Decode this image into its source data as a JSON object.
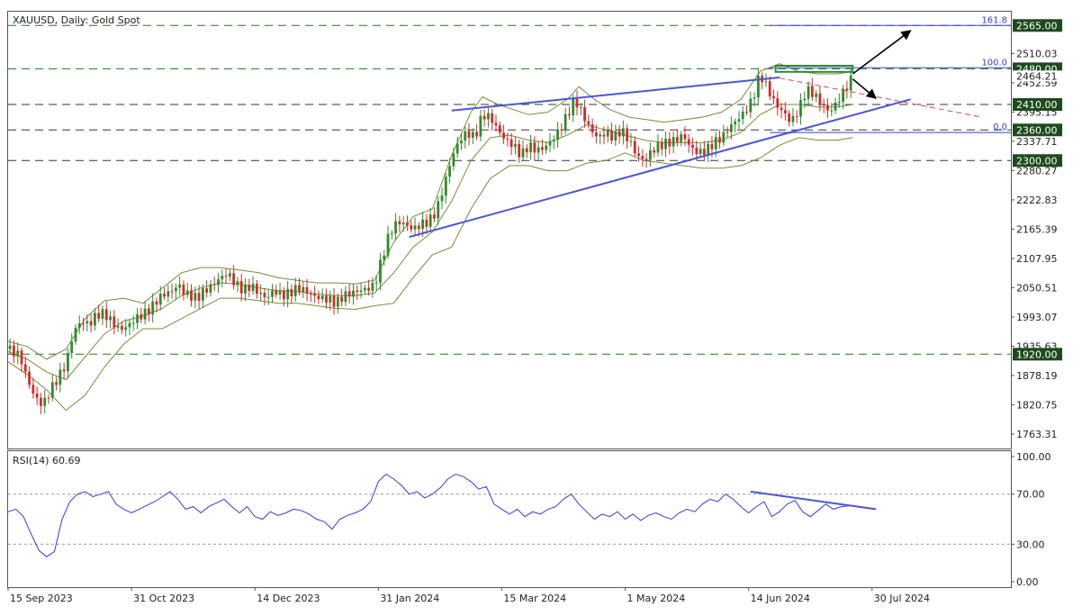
{
  "chart_data": {
    "type": "candlestick",
    "title": "XAUUSD, Daily:  Gold Spot",
    "price_ylim": [
      1735,
      2592
    ],
    "price_ticks": [
      "2510.03",
      "2452.59",
      "2395.15",
      "2337.71",
      "2280.27",
      "2222.83",
      "2165.39",
      "2107.95",
      "2050.51",
      "1993.07",
      "1935.63",
      "1878.19",
      "1820.75",
      "1763.31"
    ],
    "levels": [
      {
        "value": 2565.0,
        "label": "2565.00",
        "style": "dashed",
        "color": "#1a7a1a"
      },
      {
        "value": 2480.0,
        "label": "2480.00",
        "style": "dashed",
        "color": "#1a7a1a"
      },
      {
        "value": 2410.0,
        "label": "2410.00",
        "style": "dashed",
        "color": "#333333"
      },
      {
        "value": 2360.0,
        "label": "2360.00",
        "style": "dashed",
        "color": "#333333"
      },
      {
        "value": 2300.0,
        "label": "2300.00",
        "style": "dashed",
        "color": "#333333"
      },
      {
        "value": 1920.0,
        "label": "1920.00",
        "style": "dashed",
        "color": "#1a7a1a"
      }
    ],
    "current_price_label": "2464.21",
    "fibonacci": [
      {
        "label": "161.8",
        "value": 2565.0
      },
      {
        "label": "100.0",
        "value": 2482.0
      },
      {
        "label": "0.0",
        "value": 2355.0
      }
    ],
    "x_labels": [
      "15 Sep 2023",
      "31 Oct 2023",
      "14 Dec 2023",
      "31 Jan 2024",
      "15 Mar 2024",
      "1 May 2024",
      "14 Jun 2024",
      "30 Jul 2024"
    ],
    "price_path": [
      [
        0,
        1930
      ],
      [
        6,
        1918
      ],
      [
        10,
        1870
      ],
      [
        14,
        1835
      ],
      [
        18,
        1820
      ],
      [
        22,
        1850
      ],
      [
        26,
        1875
      ],
      [
        30,
        1900
      ],
      [
        34,
        1965
      ],
      [
        38,
        1985
      ],
      [
        42,
        1978
      ],
      [
        46,
        1998
      ],
      [
        50,
        2000
      ],
      [
        54,
        1982
      ],
      [
        58,
        1968
      ],
      [
        62,
        1975
      ],
      [
        66,
        1990
      ],
      [
        70,
        1998
      ],
      [
        74,
        2010
      ],
      [
        78,
        2030
      ],
      [
        82,
        2040
      ],
      [
        86,
        2045
      ],
      [
        88,
        2060
      ],
      [
        90,
        2045
      ],
      [
        94,
        2035
      ],
      [
        98,
        2030
      ],
      [
        102,
        2045
      ],
      [
        106,
        2055
      ],
      [
        110,
        2070
      ],
      [
        114,
        2078
      ],
      [
        118,
        2058
      ],
      [
        122,
        2045
      ],
      [
        126,
        2055
      ],
      [
        130,
        2040
      ],
      [
        134,
        2030
      ],
      [
        138,
        2045
      ],
      [
        142,
        2035
      ],
      [
        146,
        2040
      ],
      [
        150,
        2050
      ],
      [
        154,
        2045
      ],
      [
        158,
        2035
      ],
      [
        162,
        2030
      ],
      [
        166,
        2028
      ],
      [
        170,
        2020
      ],
      [
        174,
        2035
      ],
      [
        178,
        2040
      ],
      [
        182,
        2045
      ],
      [
        186,
        2048
      ],
      [
        190,
        2055
      ],
      [
        194,
        2110
      ],
      [
        198,
        2160
      ],
      [
        202,
        2180
      ],
      [
        206,
        2175
      ],
      [
        210,
        2165
      ],
      [
        214,
        2175
      ],
      [
        218,
        2180
      ],
      [
        222,
        2200
      ],
      [
        226,
        2250
      ],
      [
        230,
        2305
      ],
      [
        234,
        2340
      ],
      [
        238,
        2355
      ],
      [
        242,
        2345
      ],
      [
        246,
        2390
      ],
      [
        250,
        2385
      ],
      [
        254,
        2360
      ],
      [
        258,
        2340
      ],
      [
        262,
        2330
      ],
      [
        266,
        2310
      ],
      [
        270,
        2330
      ],
      [
        274,
        2320
      ],
      [
        278,
        2325
      ],
      [
        282,
        2340
      ],
      [
        286,
        2360
      ],
      [
        290,
        2390
      ],
      [
        294,
        2420
      ],
      [
        298,
        2390
      ],
      [
        302,
        2360
      ],
      [
        306,
        2345
      ],
      [
        310,
        2355
      ],
      [
        314,
        2345
      ],
      [
        318,
        2360
      ],
      [
        322,
        2340
      ],
      [
        326,
        2310
      ],
      [
        330,
        2300
      ],
      [
        334,
        2320
      ],
      [
        338,
        2330
      ],
      [
        342,
        2335
      ],
      [
        346,
        2340
      ],
      [
        350,
        2350
      ],
      [
        354,
        2325
      ],
      [
        358,
        2315
      ],
      [
        362,
        2320
      ],
      [
        366,
        2335
      ],
      [
        370,
        2345
      ],
      [
        374,
        2365
      ],
      [
        378,
        2380
      ],
      [
        382,
        2395
      ],
      [
        386,
        2420
      ],
      [
        390,
        2470
      ],
      [
        394,
        2440
      ],
      [
        398,
        2410
      ],
      [
        402,
        2395
      ],
      [
        406,
        2375
      ],
      [
        410,
        2400
      ],
      [
        414,
        2440
      ],
      [
        418,
        2430
      ],
      [
        422,
        2410
      ],
      [
        426,
        2395
      ],
      [
        430,
        2415
      ],
      [
        434,
        2440
      ],
      [
        438,
        2464
      ]
    ],
    "bb_upper": [
      [
        0,
        1945
      ],
      [
        10,
        1935
      ],
      [
        20,
        1910
      ],
      [
        30,
        1930
      ],
      [
        40,
        1990
      ],
      [
        50,
        2025
      ],
      [
        60,
        2030
      ],
      [
        70,
        2020
      ],
      [
        80,
        2050
      ],
      [
        90,
        2080
      ],
      [
        100,
        2090
      ],
      [
        110,
        2090
      ],
      [
        120,
        2085
      ],
      [
        130,
        2080
      ],
      [
        140,
        2070
      ],
      [
        150,
        2065
      ],
      [
        160,
        2060
      ],
      [
        170,
        2060
      ],
      [
        180,
        2058
      ],
      [
        190,
        2065
      ],
      [
        200,
        2140
      ],
      [
        210,
        2190
      ],
      [
        220,
        2205
      ],
      [
        230,
        2310
      ],
      [
        240,
        2395
      ],
      [
        246,
        2425
      ],
      [
        254,
        2410
      ],
      [
        262,
        2400
      ],
      [
        270,
        2390
      ],
      [
        280,
        2395
      ],
      [
        290,
        2420
      ],
      [
        296,
        2445
      ],
      [
        304,
        2420
      ],
      [
        312,
        2400
      ],
      [
        322,
        2385
      ],
      [
        332,
        2380
      ],
      [
        340,
        2375
      ],
      [
        350,
        2380
      ],
      [
        360,
        2385
      ],
      [
        370,
        2395
      ],
      [
        380,
        2420
      ],
      [
        390,
        2475
      ],
      [
        400,
        2490
      ],
      [
        410,
        2475
      ],
      [
        420,
        2470
      ],
      [
        430,
        2470
      ],
      [
        438,
        2475
      ]
    ],
    "bb_middle": [
      [
        0,
        1925
      ],
      [
        10,
        1910
      ],
      [
        20,
        1885
      ],
      [
        30,
        1870
      ],
      [
        40,
        1915
      ],
      [
        50,
        1960
      ],
      [
        60,
        1985
      ],
      [
        70,
        1995
      ],
      [
        80,
        2010
      ],
      [
        90,
        2035
      ],
      [
        100,
        2050
      ],
      [
        110,
        2060
      ],
      [
        120,
        2058
      ],
      [
        130,
        2050
      ],
      [
        140,
        2045
      ],
      [
        150,
        2043
      ],
      [
        160,
        2038
      ],
      [
        170,
        2035
      ],
      [
        180,
        2035
      ],
      [
        190,
        2040
      ],
      [
        200,
        2080
      ],
      [
        210,
        2130
      ],
      [
        220,
        2160
      ],
      [
        230,
        2220
      ],
      [
        240,
        2300
      ],
      [
        250,
        2345
      ],
      [
        260,
        2350
      ],
      [
        270,
        2340
      ],
      [
        280,
        2335
      ],
      [
        290,
        2350
      ],
      [
        300,
        2370
      ],
      [
        310,
        2360
      ],
      [
        320,
        2350
      ],
      [
        330,
        2340
      ],
      [
        340,
        2335
      ],
      [
        350,
        2335
      ],
      [
        360,
        2335
      ],
      [
        370,
        2340
      ],
      [
        380,
        2355
      ],
      [
        390,
        2390
      ],
      [
        400,
        2410
      ],
      [
        410,
        2410
      ],
      [
        420,
        2405
      ],
      [
        430,
        2405
      ],
      [
        438,
        2410
      ]
    ],
    "bb_lower": [
      [
        0,
        1905
      ],
      [
        10,
        1880
      ],
      [
        20,
        1850
      ],
      [
        30,
        1810
      ],
      [
        40,
        1840
      ],
      [
        50,
        1895
      ],
      [
        60,
        1940
      ],
      [
        70,
        1970
      ],
      [
        80,
        1970
      ],
      [
        90,
        1990
      ],
      [
        100,
        2010
      ],
      [
        110,
        2030
      ],
      [
        120,
        2030
      ],
      [
        130,
        2025
      ],
      [
        140,
        2020
      ],
      [
        150,
        2020
      ],
      [
        160,
        2015
      ],
      [
        170,
        2010
      ],
      [
        180,
        2008
      ],
      [
        190,
        2015
      ],
      [
        200,
        2020
      ],
      [
        210,
        2070
      ],
      [
        220,
        2115
      ],
      [
        230,
        2130
      ],
      [
        240,
        2205
      ],
      [
        250,
        2265
      ],
      [
        260,
        2290
      ],
      [
        270,
        2290
      ],
      [
        280,
        2280
      ],
      [
        290,
        2280
      ],
      [
        300,
        2295
      ],
      [
        310,
        2300
      ],
      [
        320,
        2315
      ],
      [
        330,
        2300
      ],
      [
        340,
        2295
      ],
      [
        350,
        2290
      ],
      [
        360,
        2285
      ],
      [
        370,
        2285
      ],
      [
        380,
        2290
      ],
      [
        390,
        2305
      ],
      [
        400,
        2330
      ],
      [
        410,
        2345
      ],
      [
        420,
        2340
      ],
      [
        430,
        2340
      ],
      [
        438,
        2345
      ]
    ],
    "triangle_upper": [
      [
        230,
        2398
      ],
      [
        400,
        2463
      ]
    ],
    "triangle_lower": [
      [
        208,
        2150
      ],
      [
        438,
        2408
      ]
    ],
    "rsi": {
      "label": "RSI(14) 60.69",
      "value": 60.69,
      "ylim": [
        0,
        100
      ],
      "ticks": [
        "100.00",
        "70.00",
        "30.00",
        "0.00"
      ],
      "levels": [
        70,
        30
      ],
      "series": [
        [
          0,
          56
        ],
        [
          4,
          58
        ],
        [
          8,
          52
        ],
        [
          12,
          38
        ],
        [
          16,
          25
        ],
        [
          20,
          20
        ],
        [
          24,
          24
        ],
        [
          28,
          50
        ],
        [
          32,
          64
        ],
        [
          36,
          70
        ],
        [
          40,
          72
        ],
        [
          44,
          68
        ],
        [
          48,
          70
        ],
        [
          52,
          72
        ],
        [
          56,
          62
        ],
        [
          60,
          58
        ],
        [
          64,
          55
        ],
        [
          68,
          58
        ],
        [
          72,
          61
        ],
        [
          76,
          64
        ],
        [
          80,
          68
        ],
        [
          84,
          72
        ],
        [
          88,
          66
        ],
        [
          92,
          58
        ],
        [
          96,
          60
        ],
        [
          100,
          55
        ],
        [
          104,
          60
        ],
        [
          108,
          63
        ],
        [
          112,
          66
        ],
        [
          116,
          60
        ],
        [
          120,
          55
        ],
        [
          124,
          60
        ],
        [
          128,
          52
        ],
        [
          132,
          50
        ],
        [
          136,
          56
        ],
        [
          140,
          53
        ],
        [
          144,
          55
        ],
        [
          148,
          58
        ],
        [
          152,
          57
        ],
        [
          156,
          54
        ],
        [
          160,
          50
        ],
        [
          164,
          48
        ],
        [
          168,
          42
        ],
        [
          172,
          50
        ],
        [
          176,
          53
        ],
        [
          180,
          55
        ],
        [
          184,
          58
        ],
        [
          188,
          64
        ],
        [
          192,
          80
        ],
        [
          196,
          86
        ],
        [
          200,
          82
        ],
        [
          204,
          77
        ],
        [
          208,
          70
        ],
        [
          212,
          72
        ],
        [
          216,
          67
        ],
        [
          220,
          70
        ],
        [
          224,
          75
        ],
        [
          228,
          82
        ],
        [
          232,
          86
        ],
        [
          236,
          84
        ],
        [
          240,
          80
        ],
        [
          244,
          74
        ],
        [
          248,
          76
        ],
        [
          252,
          62
        ],
        [
          256,
          58
        ],
        [
          260,
          54
        ],
        [
          264,
          58
        ],
        [
          268,
          52
        ],
        [
          272,
          56
        ],
        [
          276,
          54
        ],
        [
          280,
          58
        ],
        [
          284,
          60
        ],
        [
          288,
          66
        ],
        [
          292,
          70
        ],
        [
          296,
          62
        ],
        [
          300,
          56
        ],
        [
          304,
          50
        ],
        [
          308,
          54
        ],
        [
          312,
          52
        ],
        [
          316,
          56
        ],
        [
          320,
          50
        ],
        [
          324,
          54
        ],
        [
          328,
          49
        ],
        [
          332,
          53
        ],
        [
          336,
          55
        ],
        [
          340,
          52
        ],
        [
          344,
          50
        ],
        [
          348,
          55
        ],
        [
          352,
          58
        ],
        [
          356,
          56
        ],
        [
          360,
          62
        ],
        [
          364,
          66
        ],
        [
          368,
          64
        ],
        [
          372,
          70
        ],
        [
          376,
          66
        ],
        [
          380,
          60
        ],
        [
          384,
          55
        ],
        [
          388,
          60
        ],
        [
          392,
          64
        ],
        [
          396,
          52
        ],
        [
          400,
          56
        ],
        [
          404,
          62
        ],
        [
          408,
          65
        ],
        [
          412,
          56
        ],
        [
          416,
          52
        ],
        [
          420,
          57
        ],
        [
          424,
          62
        ],
        [
          428,
          58
        ],
        [
          432,
          60
        ],
        [
          438,
          61
        ]
      ],
      "trendline": [
        [
          385,
          72
        ],
        [
          450,
          58
        ]
      ]
    }
  }
}
